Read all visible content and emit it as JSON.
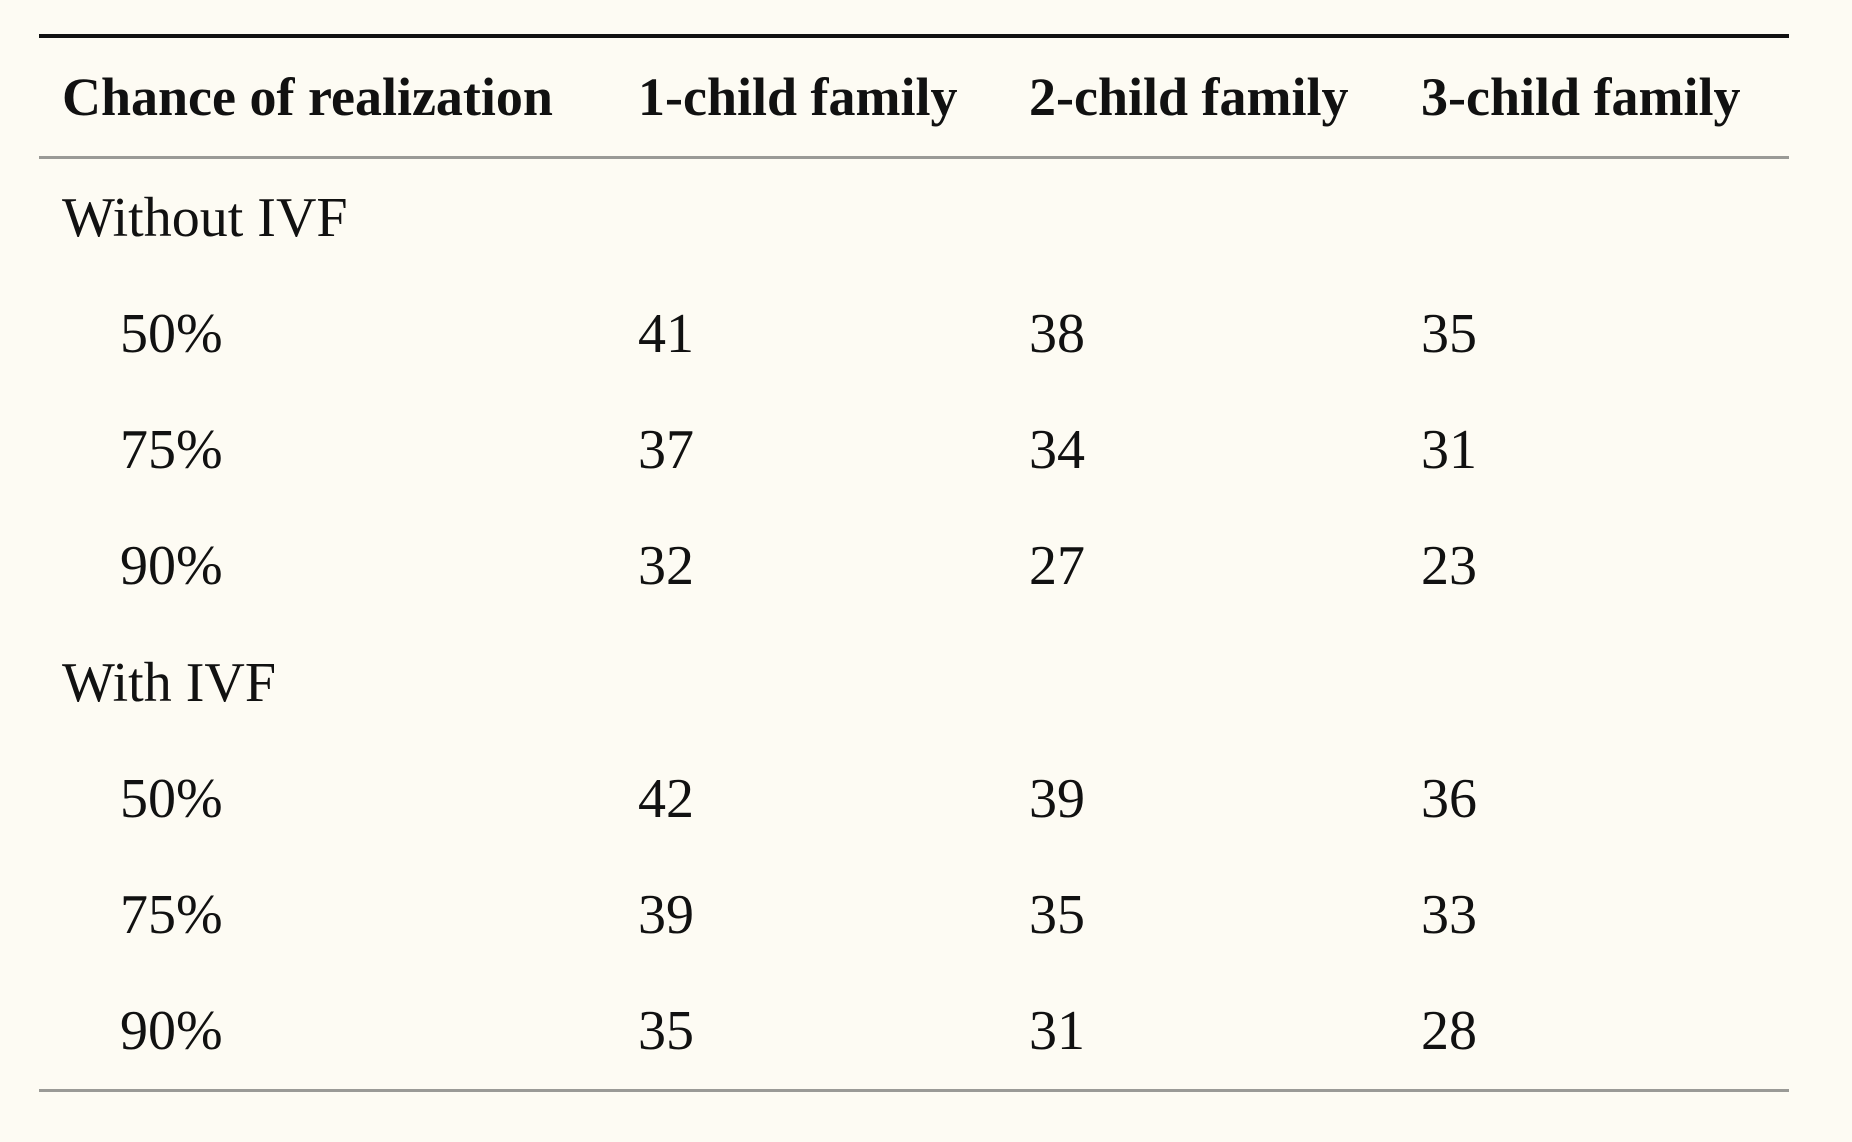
{
  "table": {
    "headers": [
      "Chance of realization",
      "1-child family",
      "2-child family",
      "3-child family"
    ],
    "groups": [
      {
        "label": "Without IVF",
        "rows": [
          {
            "chance": "50%",
            "values": [
              "41",
              "38",
              "35"
            ]
          },
          {
            "chance": "75%",
            "values": [
              "37",
              "34",
              "31"
            ]
          },
          {
            "chance": "90%",
            "values": [
              "32",
              "27",
              "23"
            ]
          }
        ]
      },
      {
        "label": "With IVF",
        "rows": [
          {
            "chance": "50%",
            "values": [
              "42",
              "39",
              "36"
            ]
          },
          {
            "chance": "75%",
            "values": [
              "39",
              "35",
              "33"
            ]
          },
          {
            "chance": "90%",
            "values": [
              "35",
              "31",
              "28"
            ]
          }
        ]
      }
    ]
  }
}
